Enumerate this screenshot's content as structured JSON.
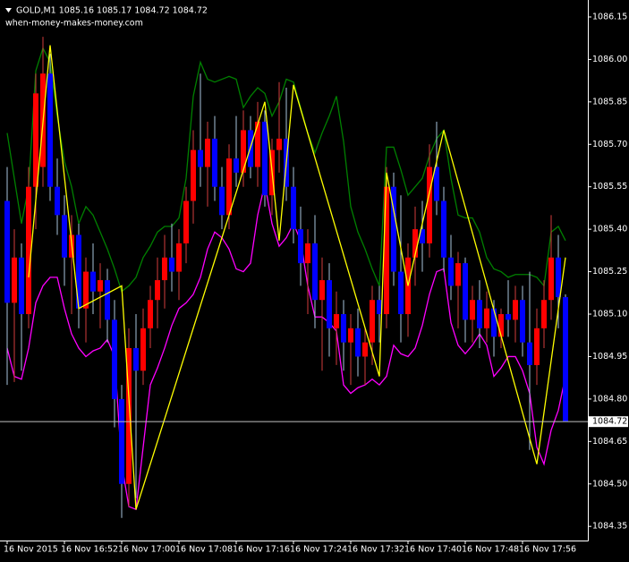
{
  "chart_data": {
    "type": "candlestick",
    "title": "GOLD,M1  1085.16 1085.17 1084.72 1084.72",
    "subtitle": "when-money-makes-money.com",
    "categories": [
      "16 Nov 2015",
      null,
      null,
      null,
      null,
      null,
      null,
      null,
      "16 Nov 16:52",
      null,
      null,
      null,
      null,
      null,
      null,
      null,
      "16 Nov 17:00",
      null,
      null,
      null,
      null,
      null,
      null,
      null,
      "16 Nov 17:08",
      null,
      null,
      null,
      null,
      null,
      null,
      null,
      "16 Nov 17:16",
      null,
      null,
      null,
      null,
      null,
      null,
      null,
      "16 Nov 17:24",
      null,
      null,
      null,
      null,
      null,
      null,
      null,
      "16 Nov 17:32",
      null,
      null,
      null,
      null,
      null,
      null,
      null,
      "16 Nov 17:40",
      null,
      null,
      null,
      null,
      null,
      null,
      null,
      "16 Nov 17:48",
      null,
      null,
      null,
      null,
      null,
      null,
      null,
      "16 Nov 17:56",
      null,
      null,
      null,
      null,
      null,
      null
    ],
    "open": [
      1085.5,
      1085.14,
      1085.3,
      1085.1,
      1085.55,
      1085.62,
      1085.95,
      1085.55,
      1085.45,
      1085.3,
      1085.38,
      1085.12,
      1085.25,
      1085.18,
      1085.22,
      1085.08,
      1084.8,
      1084.5,
      1084.98,
      1084.9,
      1085.05,
      1085.15,
      1085.22,
      1085.3,
      1085.25,
      1085.35,
      1085.5,
      1085.68,
      1085.62,
      1085.72,
      1085.55,
      1085.45,
      1085.65,
      1085.6,
      1085.75,
      1085.62,
      1085.78,
      1085.52,
      1085.68,
      1085.72,
      1085.55,
      1085.4,
      1085.28,
      1085.35,
      1085.15,
      1085.22,
      1085.05,
      1085.1,
      1085.0,
      1085.05,
      1084.95,
      1085.0,
      1085.15,
      1085.1,
      1085.55,
      1085.25,
      1085.1,
      1085.3,
      1085.4,
      1085.35,
      1085.62,
      1085.5,
      1085.3,
      1085.2,
      1085.28,
      1085.08,
      1085.15,
      1085.05,
      1085.12,
      1085.02,
      1085.1,
      1085.08,
      1085.15,
      1085.0,
      1084.92,
      1085.05,
      1085.15,
      1085.3,
      1085.16
    ],
    "high": [
      1085.62,
      1085.4,
      1085.35,
      1085.62,
      1085.95,
      1086.08,
      1086.02,
      1085.65,
      1085.52,
      1085.45,
      1085.42,
      1085.3,
      1085.35,
      1085.28,
      1085.26,
      1085.15,
      1084.85,
      1085.05,
      1085.1,
      1085.12,
      1085.2,
      1085.3,
      1085.38,
      1085.42,
      1085.4,
      1085.55,
      1085.75,
      1085.95,
      1085.78,
      1085.8,
      1085.62,
      1085.7,
      1085.8,
      1085.82,
      1085.8,
      1085.85,
      1085.82,
      1085.72,
      1085.92,
      1085.9,
      1085.62,
      1085.48,
      1085.4,
      1085.45,
      1085.3,
      1085.28,
      1085.18,
      1085.15,
      1085.1,
      1085.12,
      1085.05,
      1085.2,
      1085.2,
      1085.62,
      1085.6,
      1085.52,
      1085.35,
      1085.48,
      1085.5,
      1085.7,
      1085.78,
      1085.55,
      1085.38,
      1085.32,
      1085.3,
      1085.2,
      1085.22,
      1085.18,
      1085.15,
      1085.12,
      1085.22,
      1085.2,
      1085.2,
      1085.25,
      1085.12,
      1085.22,
      1085.45,
      1085.38,
      1085.17
    ],
    "low": [
      1084.85,
      1084.86,
      1084.9,
      1085.05,
      1085.4,
      1085.55,
      1085.5,
      1085.38,
      1085.2,
      1085.1,
      1085.05,
      1085.0,
      1085.1,
      1085.05,
      1085.0,
      1084.7,
      1084.38,
      1084.42,
      1084.45,
      1084.85,
      1084.98,
      1085.05,
      1085.12,
      1085.18,
      1085.15,
      1085.28,
      1085.42,
      1085.55,
      1085.48,
      1085.5,
      1085.4,
      1085.4,
      1085.55,
      1085.55,
      1085.58,
      1085.55,
      1085.48,
      1085.45,
      1085.6,
      1085.5,
      1085.35,
      1085.2,
      1085.1,
      1085.05,
      1084.9,
      1084.95,
      1084.92,
      1084.9,
      1084.85,
      1084.88,
      1084.85,
      1084.92,
      1085.0,
      1085.05,
      1085.2,
      1085.0,
      1085.02,
      1085.2,
      1085.25,
      1085.3,
      1085.45,
      1085.25,
      1085.15,
      1085.05,
      1085.0,
      1085.0,
      1084.98,
      1085.0,
      1084.95,
      1084.98,
      1085.02,
      1085.0,
      1084.95,
      1084.62,
      1084.85,
      1084.98,
      1085.08,
      1085.05,
      1084.72
    ],
    "close": [
      1085.14,
      1085.3,
      1085.1,
      1085.55,
      1085.88,
      1085.95,
      1085.55,
      1085.45,
      1085.3,
      1085.38,
      1085.12,
      1085.25,
      1085.18,
      1085.22,
      1085.08,
      1084.8,
      1084.5,
      1084.98,
      1084.9,
      1085.05,
      1085.15,
      1085.22,
      1085.3,
      1085.25,
      1085.35,
      1085.5,
      1085.68,
      1085.62,
      1085.72,
      1085.55,
      1085.45,
      1085.65,
      1085.6,
      1085.75,
      1085.62,
      1085.78,
      1085.52,
      1085.68,
      1085.72,
      1085.55,
      1085.4,
      1085.28,
      1085.35,
      1085.15,
      1085.22,
      1085.05,
      1085.1,
      1085.0,
      1085.05,
      1084.95,
      1085.0,
      1085.15,
      1085.1,
      1085.55,
      1085.25,
      1085.1,
      1085.3,
      1085.4,
      1085.35,
      1085.62,
      1085.5,
      1085.3,
      1085.2,
      1085.28,
      1085.08,
      1085.15,
      1085.05,
      1085.12,
      1085.02,
      1085.1,
      1085.08,
      1085.15,
      1085.0,
      1084.92,
      1085.05,
      1085.15,
      1085.3,
      1085.16,
      1084.72
    ],
    "up_color": "#ff0000",
    "down_color": "#0000ff",
    "up_wick_color": "#d23c3c",
    "down_wick_color": "#a9c4dc",
    "series": [
      {
        "color": "#008000",
        "values": [
          1085.74,
          1085.58,
          1085.42,
          1085.55,
          1085.96,
          1086.04,
          1085.99,
          1085.8,
          1085.64,
          1085.55,
          1085.42,
          1085.48,
          1085.45,
          1085.39,
          1085.33,
          1085.26,
          1085.18,
          1085.2,
          1085.23,
          1085.3,
          1085.34,
          1085.39,
          1085.41,
          1085.41,
          1085.44,
          1085.58,
          1085.87,
          1085.99,
          1085.93,
          1085.92,
          1085.93,
          1085.94,
          1085.93,
          1085.83,
          1085.87,
          1085.9,
          1085.88,
          1085.8,
          1085.85,
          1085.93,
          1085.92,
          1085.83,
          1085.74,
          1085.67,
          1085.74,
          1085.8,
          1085.87,
          1085.71,
          1085.48,
          1085.39,
          1085.33,
          1085.26,
          1085.2,
          1085.69,
          1085.69,
          1085.61,
          1085.52,
          1085.55,
          1085.58,
          1085.66,
          1085.72,
          1085.75,
          1085.58,
          1085.45,
          1085.44,
          1085.44,
          1085.39,
          1085.3,
          1085.26,
          1085.25,
          1085.23,
          1085.24,
          1085.24,
          1085.24,
          1085.23,
          1085.2,
          1085.39,
          1085.41,
          1085.36
        ]
      },
      {
        "color": "#ff00ff",
        "values": [
          1084.98,
          1084.88,
          1084.87,
          1084.98,
          1085.14,
          1085.2,
          1085.23,
          1085.23,
          1085.12,
          1085.03,
          1084.98,
          1084.95,
          1084.97,
          1084.98,
          1085.01,
          1084.95,
          1084.57,
          1084.42,
          1084.41,
          1084.63,
          1084.85,
          1084.91,
          1084.98,
          1085.06,
          1085.12,
          1085.14,
          1085.17,
          1085.23,
          1085.33,
          1085.39,
          1085.37,
          1085.33,
          1085.26,
          1085.25,
          1085.28,
          1085.45,
          1085.56,
          1085.42,
          1085.34,
          1085.37,
          1085.42,
          1085.36,
          1085.2,
          1085.09,
          1085.09,
          1085.07,
          1085.04,
          1084.85,
          1084.82,
          1084.84,
          1084.85,
          1084.87,
          1084.85,
          1084.88,
          1084.99,
          1084.96,
          1084.95,
          1084.98,
          1085.06,
          1085.17,
          1085.25,
          1085.26,
          1085.07,
          1084.99,
          1084.96,
          1084.99,
          1085.03,
          1084.99,
          1084.88,
          1084.91,
          1084.95,
          1084.95,
          1084.9,
          1084.82,
          1084.63,
          1084.57,
          1084.69,
          1084.76,
          1084.88
        ]
      }
    ],
    "zigzag": {
      "color": "#ffff00",
      "x": [
        3,
        6,
        10,
        16,
        18,
        36,
        38,
        40,
        52,
        53,
        56,
        61,
        74,
        78
      ],
      "values": [
        1085.23,
        1086.05,
        1085.12,
        1085.2,
        1084.41,
        1085.85,
        1085.36,
        1085.91,
        1084.88,
        1085.6,
        1085.2,
        1085.75,
        1084.57,
        1085.3
      ]
    },
    "ylim": [
      1084.3,
      1086.21
    ],
    "yticks": [
      1086.15,
      {
        "value": 1086.0,
        "label": "1086.00"
      },
      1085.85,
      {
        "value": 1085.7,
        "label": "1085.70"
      },
      1085.55,
      {
        "value": 1085.4,
        "label": "1085.40"
      },
      1085.25,
      {
        "value": 1085.1,
        "label": "1085.10"
      },
      1084.95,
      {
        "value": 1084.8,
        "label": "1084.80"
      },
      1084.65,
      {
        "value": 1084.5,
        "label": "1084.50"
      },
      1084.35
    ],
    "last_price": 1084.72,
    "grid": false
  }
}
